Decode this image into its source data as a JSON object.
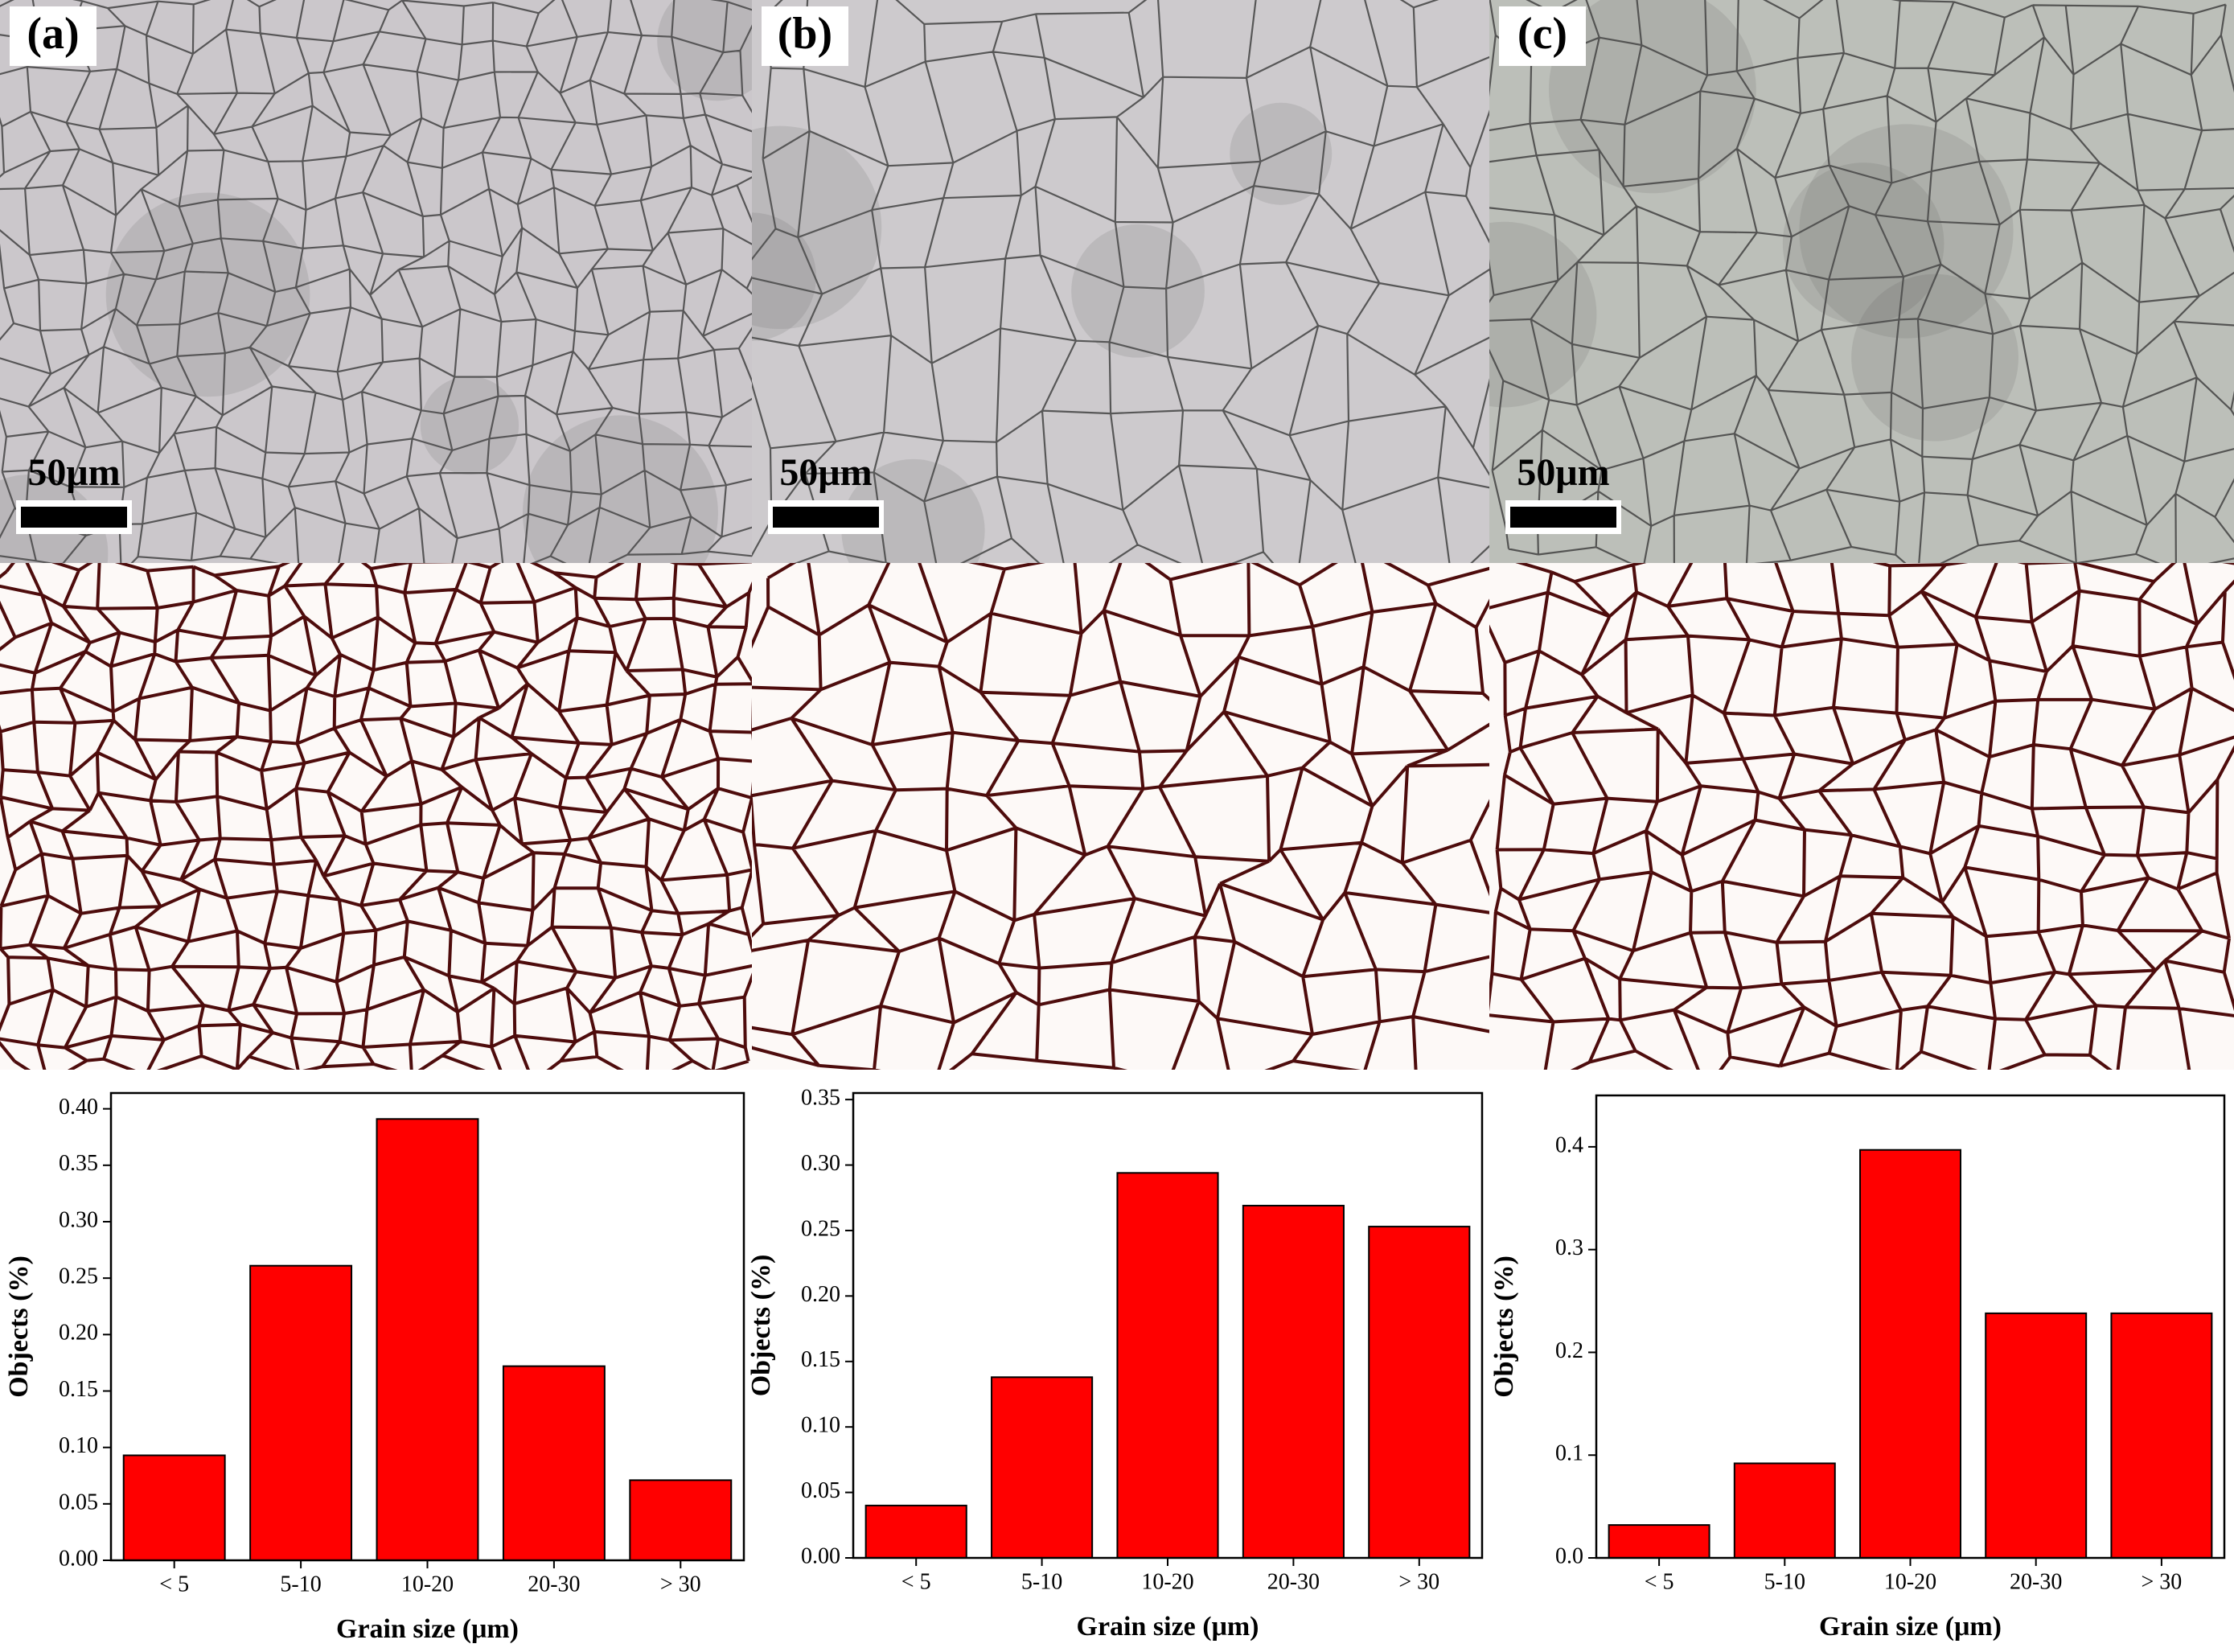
{
  "panels": [
    {
      "label": "(a)",
      "scale_bar": "50μm"
    },
    {
      "label": "(b)",
      "scale_bar": "50μm"
    },
    {
      "label": "(c)",
      "scale_bar": "50μm"
    }
  ],
  "chart_data": [
    {
      "type": "bar",
      "categories": [
        "< 5",
        "5-10",
        "10-20",
        "20-30",
        "> 30"
      ],
      "values": [
        0.093,
        0.261,
        0.391,
        0.172,
        0.071
      ],
      "color": "#ff0000",
      "x_label": "Grain size (μm)",
      "y_label": "Objects (%)",
      "ylim": [
        0,
        0.414
      ],
      "yticks": [
        {
          "value": 0,
          "label": "0.00"
        },
        0.05,
        {
          "value": 0.1,
          "label": "0.10"
        },
        0.15,
        {
          "value": 0.2,
          "label": "0.20"
        },
        0.25,
        {
          "value": 0.3,
          "label": "0.30"
        },
        0.35,
        {
          "value": 0.4,
          "label": "0.40"
        }
      ]
    },
    {
      "type": "bar",
      "categories": [
        "< 5",
        "5-10",
        "10-20",
        "20-30",
        "> 30"
      ],
      "values": [
        0.04,
        0.138,
        0.294,
        0.269,
        0.253
      ],
      "color": "#ff0000",
      "x_label": "Grain size (μm)",
      "y_label": "Objects (%)",
      "ylim": [
        0,
        0.355
      ],
      "yticks": [
        {
          "value": 0,
          "label": "0.00"
        },
        0.05,
        {
          "value": 0.1,
          "label": "0.10"
        },
        0.15,
        {
          "value": 0.2,
          "label": "0.20"
        },
        0.25,
        {
          "value": 0.3,
          "label": "0.30"
        },
        0.35
      ]
    },
    {
      "type": "bar",
      "categories": [
        "< 5",
        "5-10",
        "10-20",
        "20-30",
        "> 30"
      ],
      "values": [
        0.032,
        0.092,
        0.397,
        0.238,
        0.238
      ],
      "color": "#ff0000",
      "x_label": "Grain size (μm)",
      "y_label": "Objects (%)",
      "ylim": [
        0,
        0.45
      ],
      "yticks": [
        {
          "value": 0,
          "label": "0.0"
        },
        0.1,
        0.2,
        0.3,
        0.4
      ]
    }
  ]
}
